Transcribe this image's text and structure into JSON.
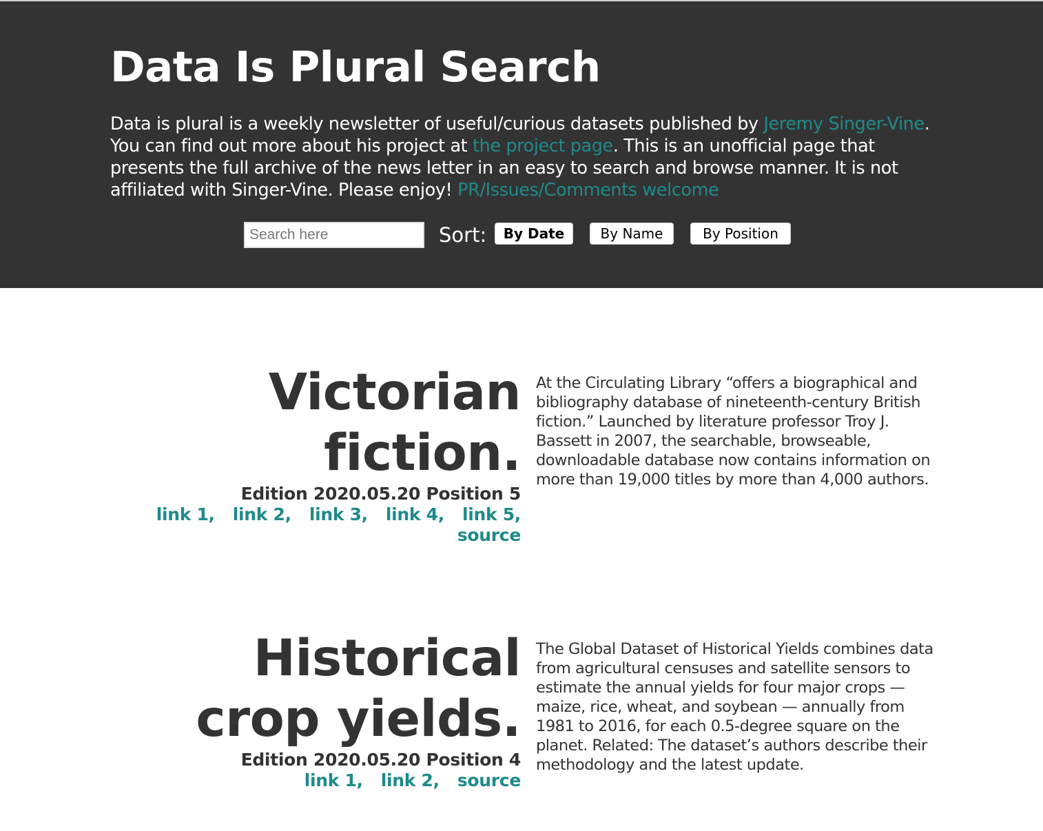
{
  "header": {
    "title": "Data Is Plural Search",
    "intro": {
      "part1": "Data is plural is a weekly newsletter of useful/curious datasets published by ",
      "author_link": "Jeremy Singer-Vine",
      "part2": ". You can find out more about his project at ",
      "project_link": "the project page",
      "part3": ". This is an unofficial page that presents the full archive of the news letter in an easy to search and browse manner. It is not affiliated with Singer-Vine. Please enjoy! ",
      "issues_link": "PR/Issues/Comments welcome"
    },
    "search": {
      "placeholder": "Search here",
      "value": ""
    },
    "sort": {
      "label": "Sort:",
      "by_date": "By Date",
      "by_name": "By Name",
      "by_position": "By Position",
      "active": "By Date"
    }
  },
  "colors": {
    "header_bg": "#333333",
    "link": "#1f8a8a",
    "text": "#333333"
  },
  "entries": [
    {
      "title": "Victorian fiction.",
      "meta": "Edition 2020.05.20 Position 5",
      "links": [
        "link 1,",
        "link 2,",
        "link 3,",
        "link 4,",
        "link 5,",
        "source"
      ],
      "description": "At the Circulating Library “offers a biographical and bibliography database of nineteenth-century British fiction.” Launched by literature professor Troy J. Bassett in 2007, the searchable, browseable, downloadable database now contains information on more than 19,000 titles by more than 4,000 authors."
    },
    {
      "title": "Historical crop yields.",
      "meta": "Edition 2020.05.20 Position 4",
      "links": [
        "link 1,",
        "link 2,",
        "source"
      ],
      "description": "The Global Dataset of Historical Yields combines data from agricultural censuses and satellite sensors to estimate the annual yields for four major crops — maize, rice, wheat, and soybean — annually from 1981 to 2016, for each 0.5-degree square on the planet. Related: The dataset’s authors describe their methodology and the latest update."
    }
  ]
}
